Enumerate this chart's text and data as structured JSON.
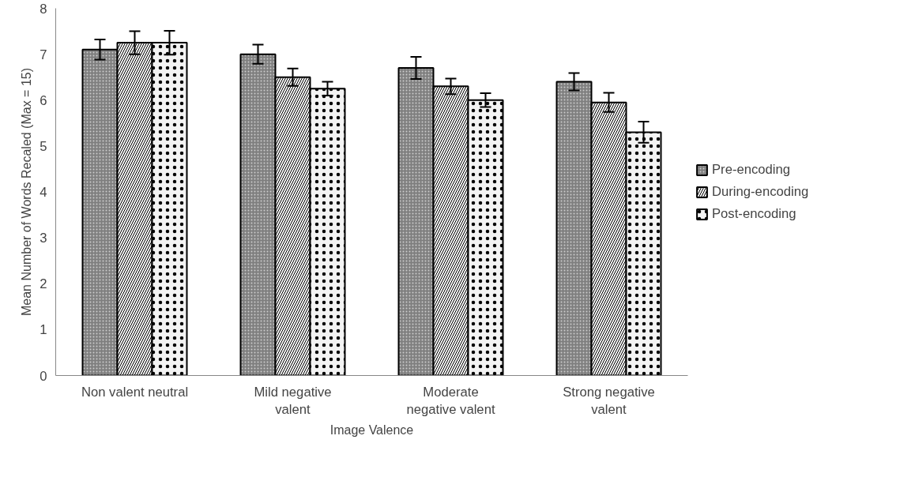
{
  "chart_data": {
    "type": "bar",
    "xlabel": "Image Valence",
    "ylabel": "Mean Number of Words Recaled (Max = 15)",
    "categories": [
      "Non valent neutral",
      "Mild negative\nvalent",
      "Moderate\nnegative valent",
      "Strong negative\nvalent"
    ],
    "series": [
      {
        "name": "Pre-encoding",
        "color": "#808080",
        "values": [
          7.1,
          7.0,
          6.7,
          6.4
        ],
        "errors": [
          0.22,
          0.21,
          0.24,
          0.19
        ]
      },
      {
        "name": "During-encoding",
        "color": "#f7f7f7",
        "values": [
          7.25,
          6.5,
          6.3,
          5.95
        ],
        "errors": [
          0.25,
          0.19,
          0.17,
          0.21
        ]
      },
      {
        "name": "Post-encoding",
        "color": "#f3f3f3",
        "values": [
          7.25,
          6.25,
          6.0,
          5.3
        ],
        "errors": [
          0.26,
          0.15,
          0.15,
          0.23
        ]
      }
    ],
    "ylim": [
      0,
      8
    ],
    "yticks": [
      0,
      1,
      2,
      3,
      4,
      5,
      6,
      7,
      8
    ],
    "grid": false,
    "legend": "right"
  }
}
